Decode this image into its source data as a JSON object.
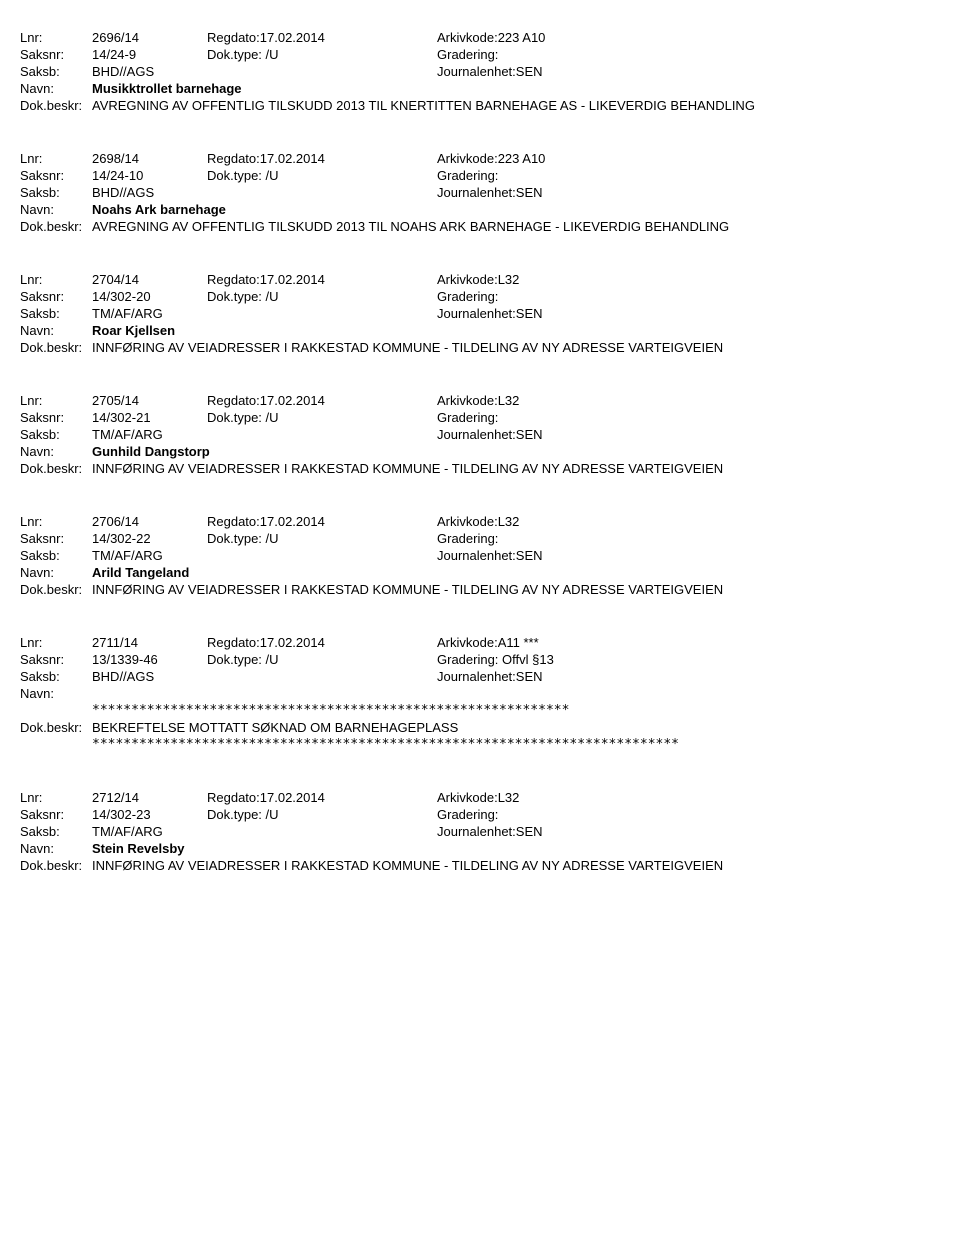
{
  "labels": {
    "lnr": "Lnr:",
    "saksnr": "Saksnr:",
    "saksb": "Saksb:",
    "navn": "Navn:",
    "dokbeskr": "Dok.beskr:",
    "regdato_prefix": "Regdato:",
    "doktype_prefix": "Dok.type: ",
    "arkivkode_prefix": "Arkivkode:",
    "gradering": "Gradering:",
    "journalenhet": "Journalenhet:SEN"
  },
  "entries": [
    {
      "lnr": "2696/14",
      "regdato": "17.02.2014",
      "arkivkode": "223 A10",
      "saksnr": "14/24-9",
      "doktype": "/U",
      "gradering": "",
      "saksb": "BHD//AGS",
      "navn": "Musikktrollet barnehage",
      "beskr": "AVREGNING AV OFFENTLIG TILSKUDD 2013 TIL KNERTITTEN BARNEHAGE AS - LIKEVERDIG BEHANDLING",
      "has_stars_navn": false,
      "has_stars_beskr": false
    },
    {
      "lnr": "2698/14",
      "regdato": "17.02.2014",
      "arkivkode": "223 A10",
      "saksnr": "14/24-10",
      "doktype": "/U",
      "gradering": "",
      "saksb": "BHD//AGS",
      "navn": "Noahs Ark barnehage",
      "beskr": "AVREGNING AV OFFENTLIG TILSKUDD 2013 TIL NOAHS ARK BARNEHAGE - LIKEVERDIG BEHANDLING",
      "has_stars_navn": false,
      "has_stars_beskr": false
    },
    {
      "lnr": "2704/14",
      "regdato": "17.02.2014",
      "arkivkode": "L32",
      "saksnr": "14/302-20",
      "doktype": "/U",
      "gradering": "",
      "saksb": "TM/AF/ARG",
      "navn": "Roar Kjellsen",
      "beskr": "INNFØRING AV VEIADRESSER I RAKKESTAD KOMMUNE - TILDELING AV NY ADRESSE VARTEIGVEIEN",
      "has_stars_navn": false,
      "has_stars_beskr": false
    },
    {
      "lnr": "2705/14",
      "regdato": "17.02.2014",
      "arkivkode": "L32",
      "saksnr": "14/302-21",
      "doktype": "/U",
      "gradering": "",
      "saksb": "TM/AF/ARG",
      "navn": "Gunhild Dangstorp",
      "beskr": "INNFØRING AV VEIADRESSER I RAKKESTAD KOMMUNE - TILDELING AV NY ADRESSE VARTEIGVEIEN",
      "has_stars_navn": false,
      "has_stars_beskr": false
    },
    {
      "lnr": "2706/14",
      "regdato": "17.02.2014",
      "arkivkode": "L32",
      "saksnr": "14/302-22",
      "doktype": "/U",
      "gradering": "",
      "saksb": "TM/AF/ARG",
      "navn": "Arild Tangeland",
      "beskr": "INNFØRING AV VEIADRESSER I RAKKESTAD KOMMUNE - TILDELING AV NY ADRESSE VARTEIGVEIEN",
      "has_stars_navn": false,
      "has_stars_beskr": false
    },
    {
      "lnr": "2711/14",
      "regdato": "17.02.2014",
      "arkivkode": "A11 ***",
      "saksnr": "13/1339-46",
      "doktype": "/U",
      "gradering": " Offvl §13",
      "saksb": "BHD//AGS",
      "navn": "",
      "beskr": "BEKREFTELSE MOTTATT SØKNAD OM BARNEHAGEPLASS",
      "has_stars_navn": true,
      "has_stars_beskr": true,
      "stars_navn": "*************************************************************",
      "stars_beskr": "***************************************************************************"
    },
    {
      "lnr": "2712/14",
      "regdato": "17.02.2014",
      "arkivkode": "L32",
      "saksnr": "14/302-23",
      "doktype": "/U",
      "gradering": "",
      "saksb": "TM/AF/ARG",
      "navn": "Stein Revelsby",
      "beskr": "INNFØRING AV VEIADRESSER I RAKKESTAD KOMMUNE - TILDELING AV NY ADRESSE VARTEIGVEIEN",
      "has_stars_navn": false,
      "has_stars_beskr": false
    }
  ]
}
